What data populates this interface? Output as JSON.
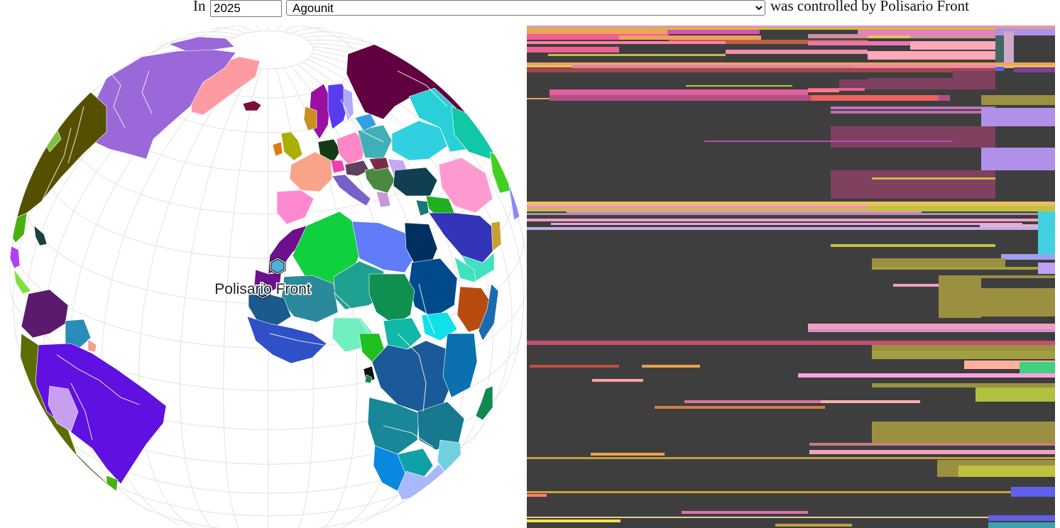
{
  "controls": {
    "prefix": "In",
    "year": "2025",
    "region": "Agounit",
    "region_options": [
      "Agounit"
    ],
    "suffix": "was controlled by Polisario Front"
  },
  "map": {
    "marker_label": "Polisario Front",
    "ocean_color": "#ffffff",
    "graticule_color": "#e2e2e2",
    "river_color": "#f2f2f2",
    "highlight_color": "#4fb0de"
  },
  "timeline": {
    "background": "#3e3e3e"
  }
}
